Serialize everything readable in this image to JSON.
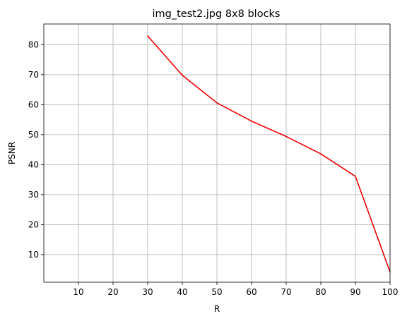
{
  "chart_data": {
    "type": "line",
    "title": "img_test2.jpg 8x8 blocks",
    "xlabel": "R",
    "ylabel": "PSNR",
    "xlim": [
      0,
      100
    ],
    "ylim": [
      0.8,
      86.9
    ],
    "xticks": [
      10,
      20,
      30,
      40,
      50,
      60,
      70,
      80,
      90,
      100
    ],
    "yticks": [
      10,
      20,
      30,
      40,
      50,
      60,
      70,
      80
    ],
    "grid": true,
    "series": [
      {
        "color": "#ee0000",
        "x": [
          30,
          40,
          50,
          60,
          70,
          80,
          90,
          100
        ],
        "y": [
          82.9,
          69.8,
          60.6,
          54.5,
          49.4,
          43.6,
          36.1,
          4.2
        ]
      }
    ]
  }
}
